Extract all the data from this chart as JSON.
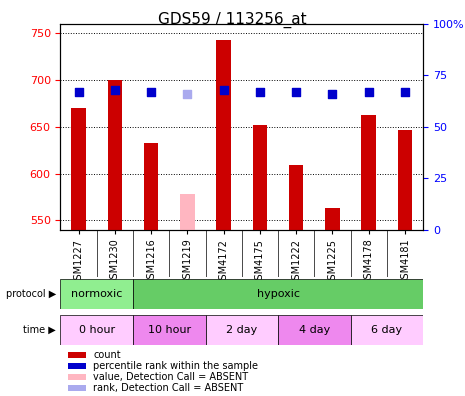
{
  "title": "GDS59 / 113256_at",
  "samples": [
    "GSM1227",
    "GSM1230",
    "GSM1216",
    "GSM1219",
    "GSM4172",
    "GSM4175",
    "GSM1222",
    "GSM1225",
    "GSM4178",
    "GSM4181"
  ],
  "counts": [
    670,
    700,
    633,
    null,
    743,
    652,
    609,
    563,
    662,
    647
  ],
  "counts_absent": [
    null,
    null,
    null,
    578,
    null,
    null,
    null,
    null,
    null,
    null
  ],
  "ranks": [
    67,
    68,
    67,
    null,
    68,
    67,
    67,
    66,
    67,
    67
  ],
  "ranks_absent": [
    null,
    null,
    null,
    66,
    null,
    null,
    null,
    null,
    null,
    null
  ],
  "ylim_left": [
    540,
    760
  ],
  "ylim_right": [
    0,
    100
  ],
  "yticks_left": [
    550,
    600,
    650,
    700,
    750
  ],
  "yticks_right": [
    0,
    25,
    50,
    75,
    100
  ],
  "ytick_labels_right": [
    "0",
    "25",
    "50",
    "75",
    "100%"
  ],
  "bar_color_red": "#cc0000",
  "bar_color_pink": "#ffb6c1",
  "dot_color_blue": "#0000cc",
  "dot_color_lightblue": "#aaaaee",
  "bar_width": 0.4,
  "protocol_row": {
    "groups": [
      {
        "label": "normoxic",
        "start": 0,
        "end": 2,
        "color": "#90ee90"
      },
      {
        "label": "hypoxic",
        "start": 2,
        "end": 10,
        "color": "#66cc66"
      }
    ]
  },
  "time_row": {
    "groups": [
      {
        "label": "0 hour",
        "start": 0,
        "end": 2,
        "color": "#ffccff"
      },
      {
        "label": "10 hour",
        "start": 2,
        "end": 4,
        "color": "#ee88ee"
      },
      {
        "label": "2 day",
        "start": 4,
        "end": 6,
        "color": "#ffccff"
      },
      {
        "label": "4 day",
        "start": 6,
        "end": 8,
        "color": "#ee88ee"
      },
      {
        "label": "6 day",
        "start": 8,
        "end": 10,
        "color": "#ffccff"
      }
    ]
  },
  "legend_items": [
    {
      "label": "count",
      "color": "#cc0000",
      "marker": "s"
    },
    {
      "label": "percentile rank within the sample",
      "color": "#0000cc",
      "marker": "s"
    },
    {
      "label": "value, Detection Call = ABSENT",
      "color": "#ffb6c1",
      "marker": "s"
    },
    {
      "label": "rank, Detection Call = ABSENT",
      "color": "#aaaaee",
      "marker": "s"
    }
  ]
}
